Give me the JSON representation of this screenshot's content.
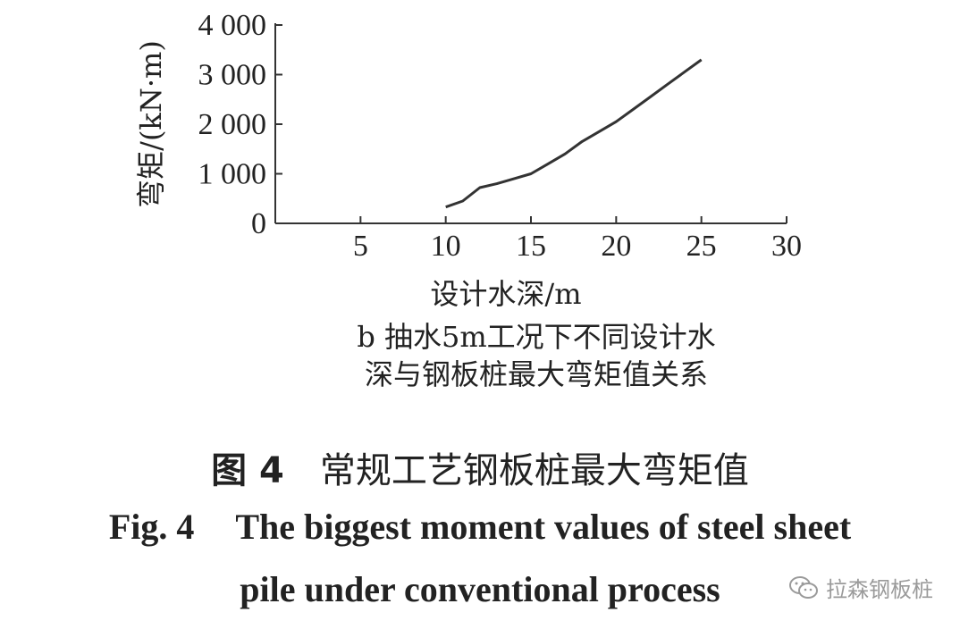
{
  "chart_data": {
    "type": "line",
    "panel_label": "b",
    "xlabel": "设计水深/m",
    "ylabel": "弯矩/(kN·m)",
    "xlim": [
      0,
      30
    ],
    "ylim": [
      0,
      4000
    ],
    "x_ticks": [
      5,
      10,
      15,
      20,
      25,
      30
    ],
    "y_ticks": [
      0,
      1000,
      2000,
      3000,
      4000
    ],
    "y_tick_labels": [
      "0",
      "1 000",
      "2 000",
      "3 000",
      "4 000"
    ],
    "grid": false,
    "series": [
      {
        "x": [
          10,
          11,
          12,
          13,
          14,
          15,
          16,
          17,
          18,
          19,
          20,
          21,
          22,
          23,
          24,
          25
        ],
        "y": [
          330,
          450,
          720,
          800,
          900,
          1000,
          1200,
          1400,
          1650,
          1850,
          2050,
          2300,
          2550,
          2800,
          3050,
          3300
        ]
      }
    ]
  },
  "subcaption": {
    "line1": "b 抽水5m工况下不同设计水",
    "line2": "深与钢板桩最大弯矩值关系"
  },
  "figure_caption": {
    "cn_number": "图 4",
    "cn_title": "常规工艺钢板桩最大弯矩值",
    "en_number": "Fig. 4",
    "en_title_line1": "The biggest moment values of steel sheet",
    "en_title_line2": "pile under conventional process"
  },
  "watermark": {
    "icon": "wechat-icon",
    "text": "拉森钢板桩"
  },
  "colors": {
    "line": "#333333",
    "axis": "#333333",
    "text": "#222222",
    "watermark": "#9a9a9a"
  }
}
